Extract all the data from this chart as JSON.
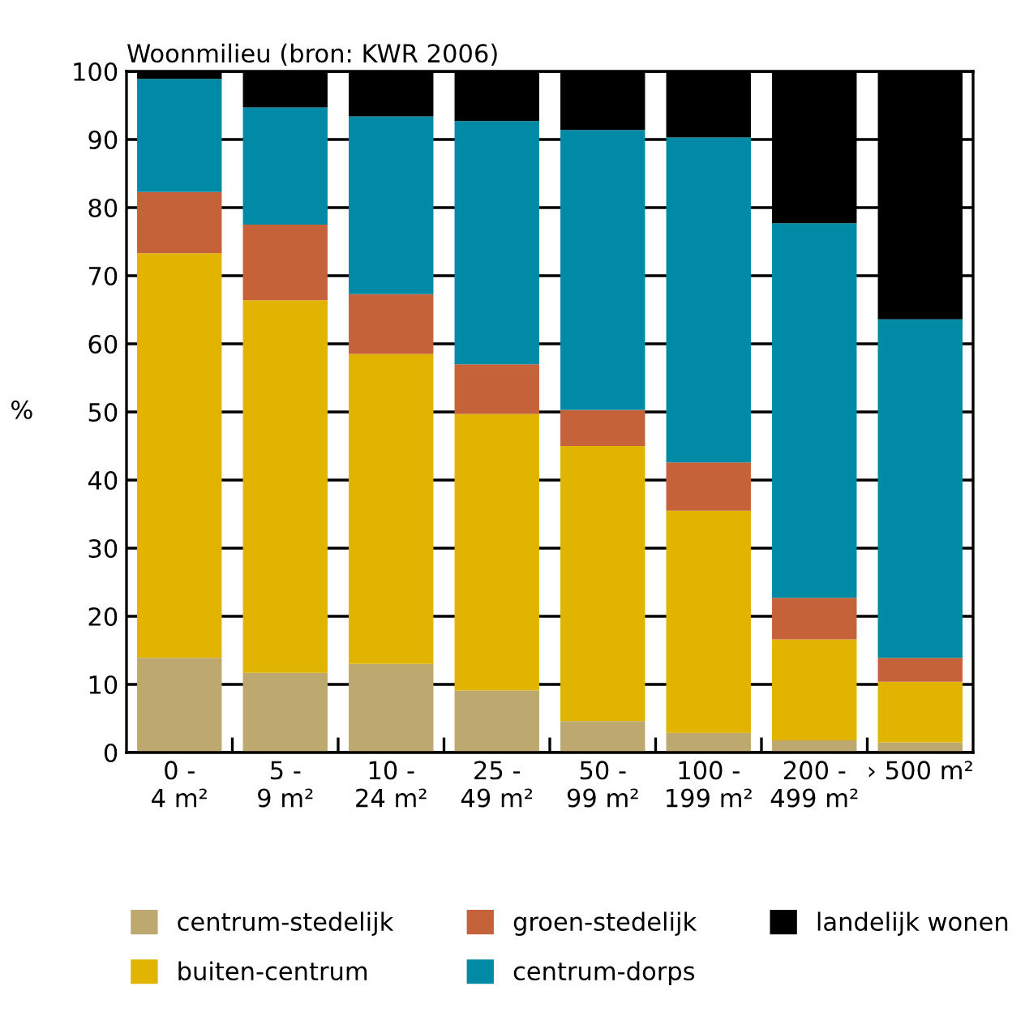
{
  "chart_data": {
    "type": "bar",
    "title": "Woonmilieu (bron: KWR 2006)",
    "ylabel": "%",
    "categories": [
      "0 -\n4 m²",
      "5 -\n9 m²",
      "10 -\n24 m²",
      "25 -\n49 m²",
      "50 -\n99 m²",
      "100 -\n199 m²",
      "200 -\n499 m²",
      "› 500 m²"
    ],
    "stacked": true,
    "series": [
      {
        "name": "centrum-stedelijk",
        "color": "#bda96f",
        "values": [
          13.9,
          11.7,
          13.0,
          9.1,
          4.6,
          2.9,
          1.8,
          1.5
        ]
      },
      {
        "name": "buiten-centrum",
        "color": "#e0b400",
        "values": [
          59.4,
          54.7,
          45.5,
          40.6,
          40.4,
          32.6,
          14.8,
          8.9
        ]
      },
      {
        "name": "groen-stedelijk",
        "color": "#c6623a",
        "values": [
          9.0,
          11.1,
          8.8,
          7.3,
          5.3,
          7.1,
          6.1,
          3.5
        ]
      },
      {
        "name": "centrum-dorps",
        "color": "#008aa6",
        "values": [
          16.6,
          17.2,
          26.1,
          35.7,
          41.1,
          47.7,
          55.0,
          49.7
        ]
      },
      {
        "name": "landelijk wonen",
        "color": "#000000",
        "values": [
          1.1,
          5.3,
          6.6,
          7.3,
          8.6,
          9.7,
          22.3,
          36.4
        ]
      }
    ],
    "ylim": [
      0,
      100
    ],
    "yticks": [
      0,
      10,
      20,
      30,
      40,
      50,
      60,
      70,
      80,
      90,
      100
    ],
    "grid": "y",
    "legend": "bottom"
  }
}
